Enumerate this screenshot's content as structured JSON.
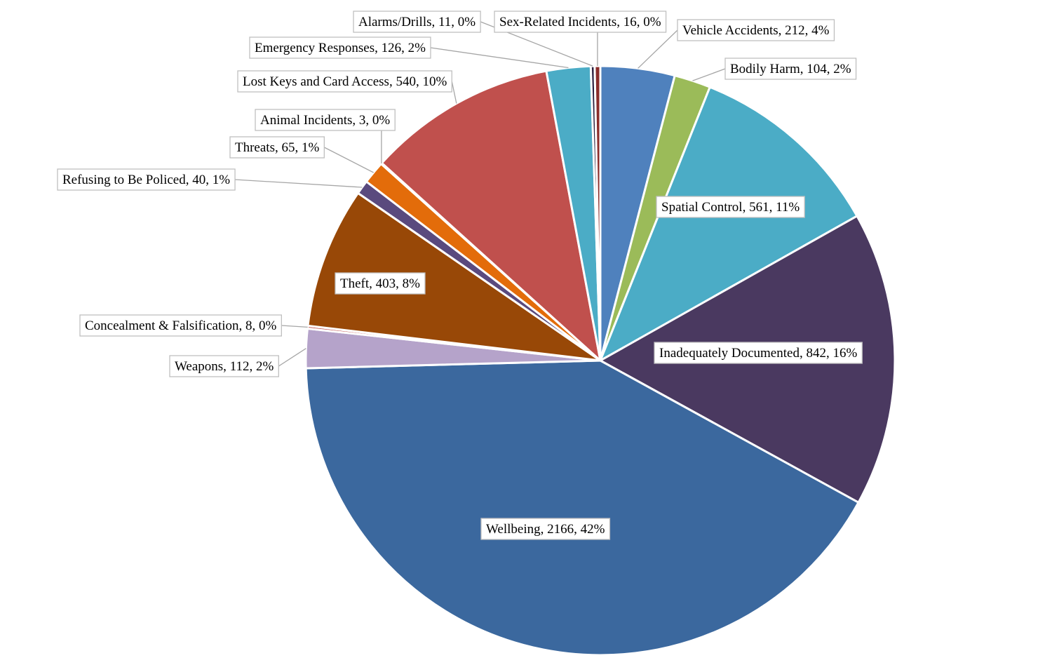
{
  "chart_data": {
    "type": "pie",
    "title": "",
    "start_angle_deg": 0,
    "direction": "clockwise",
    "slices": [
      {
        "label": "Vehicle Accidents",
        "value": 212,
        "percent": "4%",
        "color": "#4f81bd"
      },
      {
        "label": "Bodily Harm",
        "value": 104,
        "percent": "2%",
        "color": "#9bbb59"
      },
      {
        "label": "Spatial Control",
        "value": 561,
        "percent": "11%",
        "color": "#4bacc6"
      },
      {
        "label": "Inadequately Documented",
        "value": 842,
        "percent": "16%",
        "color": "#4a3960"
      },
      {
        "label": "Wellbeing",
        "value": 2166,
        "percent": "42%",
        "color": "#3b689e"
      },
      {
        "label": "Weapons",
        "value": 112,
        "percent": "2%",
        "color": "#b5a3ca"
      },
      {
        "label": "Concealment & Falsification",
        "value": 8,
        "percent": "0%",
        "color": "#c0504d"
      },
      {
        "label": "Theft",
        "value": 403,
        "percent": "8%",
        "color": "#984807"
      },
      {
        "label": "Refusing to Be Policed",
        "value": 40,
        "percent": "1%",
        "color": "#5a4a7e"
      },
      {
        "label": "Threats",
        "value": 65,
        "percent": "1%",
        "color": "#e36c0a"
      },
      {
        "label": "Animal Incidents",
        "value": 3,
        "percent": "0%",
        "color": "#2c4d75"
      },
      {
        "label": "Lost Keys and Card Access",
        "value": 540,
        "percent": "10%",
        "color": "#c0504d"
      },
      {
        "label": "Emergency Responses",
        "value": 126,
        "percent": "2%",
        "color": "#4bacc6"
      },
      {
        "label": "Alarms/Drills",
        "value": 11,
        "percent": "0%",
        "color": "#2c2140"
      },
      {
        "label": "Sex-Related Incidents",
        "value": 16,
        "percent": "0%",
        "color": "#8b2d2b"
      }
    ]
  }
}
